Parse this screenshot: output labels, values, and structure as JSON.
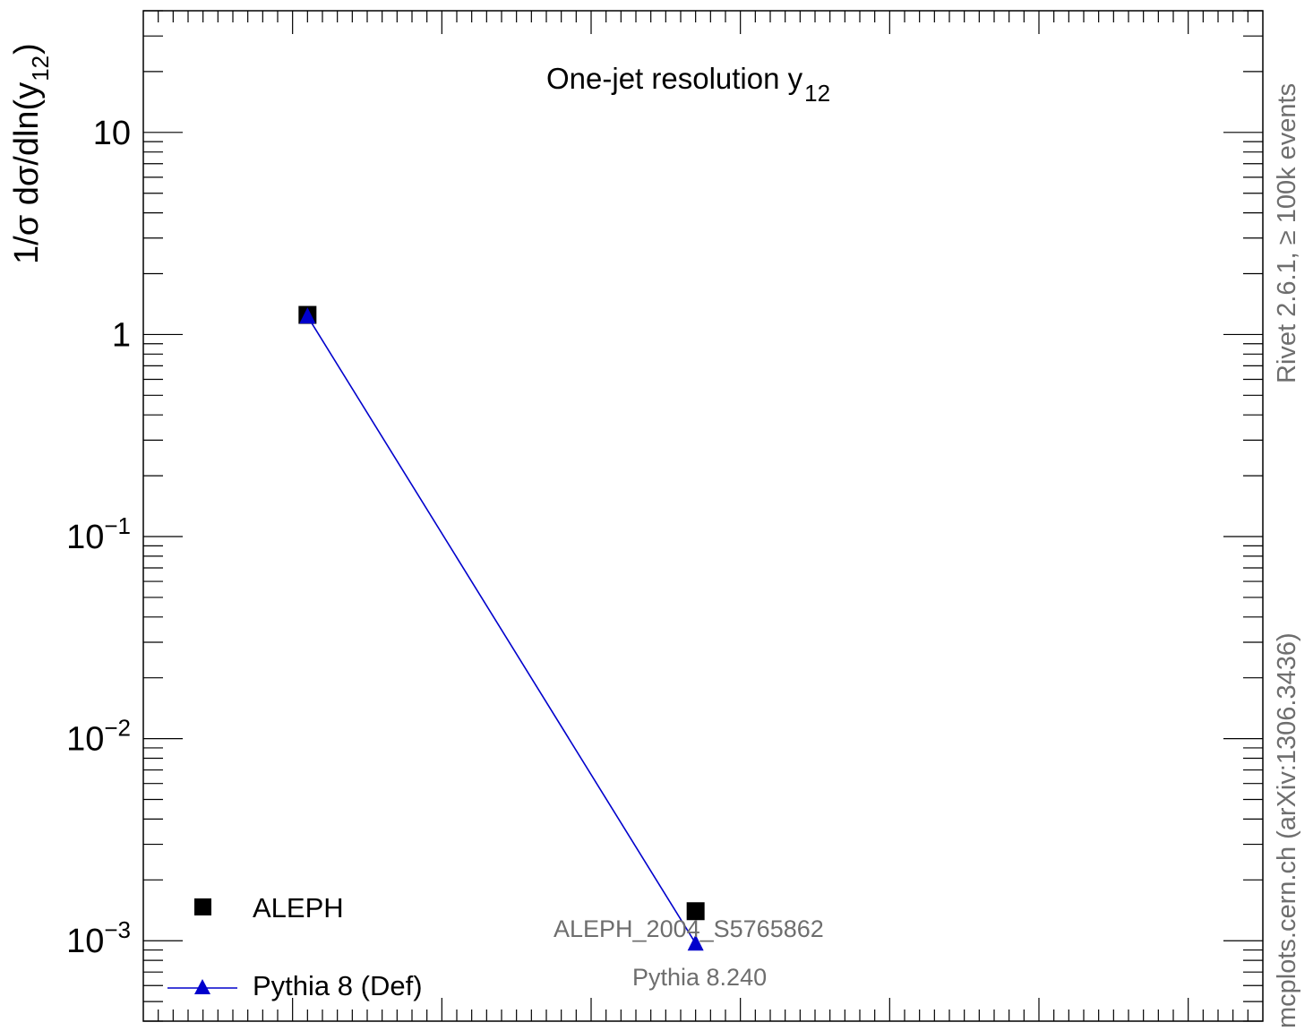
{
  "chart_data": {
    "type": "scatter",
    "title": "One-jet resolution y",
    "title_sub": "12",
    "ylabel": "1/σ  dσ/dln(y",
    "ylabel_sub": "12",
    "ylabel_close": ")",
    "yscale": "log",
    "ylim": [
      0.0004,
      40
    ],
    "xlim": [
      -1.0,
      0.5
    ],
    "y_ticks": [
      {
        "value": 10,
        "base": "10",
        "exp": ""
      },
      {
        "value": 1,
        "base": "1",
        "exp": ""
      },
      {
        "value": 0.1,
        "base": "10",
        "exp": "−1"
      },
      {
        "value": 0.01,
        "base": "10",
        "exp": "−2"
      },
      {
        "value": 0.001,
        "base": "10",
        "exp": "−3"
      }
    ],
    "series": [
      {
        "name": "ALEPH",
        "marker": "square",
        "color": "#000000",
        "line": false,
        "x": [
          -0.78,
          -0.26
        ],
        "y": [
          1.25,
          0.0014
        ]
      },
      {
        "name": "Pythia 8 (Def)",
        "marker": "triangle",
        "color": "#0000cc",
        "line": true,
        "x": [
          -0.78,
          -0.26
        ],
        "y": [
          1.23,
          0.00097
        ]
      }
    ],
    "legend_position": "bottom-left",
    "annotations": {
      "analysis": "ALEPH_2004_S5765862",
      "generator": "Pythia 8.240"
    },
    "side_labels": {
      "rivet": "Rivet 2.6.1, ≥ 100k events",
      "mcplots": "mcplots.cern.ch (arXiv:1306.3436)"
    }
  }
}
